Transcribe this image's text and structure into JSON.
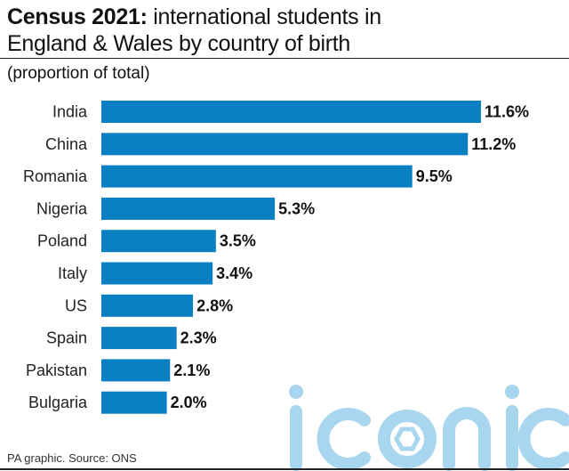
{
  "header": {
    "title_bold": "Census 2021:",
    "title_rest": " international students in",
    "title_line2": "England & Wales by country of birth",
    "subtitle": "(proportion of total)"
  },
  "footer": {
    "source": "PA graphic. Source: ONS"
  },
  "watermark": {
    "text": "iconic",
    "color": "#a9d6ef"
  },
  "chart_data": {
    "type": "bar",
    "orientation": "horizontal",
    "categories": [
      "India",
      "China",
      "Romania",
      "Nigeria",
      "Poland",
      "Italy",
      "US",
      "Spain",
      "Pakistan",
      "Bulgaria"
    ],
    "values": [
      11.6,
      11.2,
      9.5,
      5.3,
      3.5,
      3.4,
      2.8,
      2.3,
      2.1,
      2.0
    ],
    "value_labels": [
      "11.6%",
      "11.2%",
      "9.5%",
      "5.3%",
      "3.5%",
      "3.4%",
      "2.8%",
      "2.3%",
      "2.1%",
      "2.0%"
    ],
    "unit": "%",
    "bar_color": "#0a7fc1",
    "grid": false,
    "xlim": [
      0,
      11.6
    ]
  }
}
